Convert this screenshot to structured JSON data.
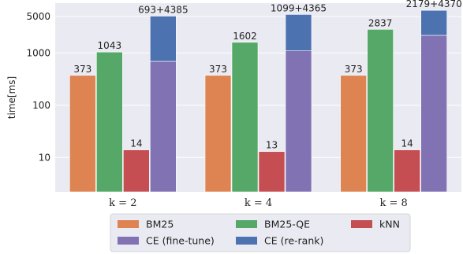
{
  "chart_data": {
    "type": "bar",
    "scale": "log",
    "ylabel": "time[ms]",
    "ylim": [
      2.2,
      9000
    ],
    "yticks": [
      {
        "value": 10,
        "label": "10"
      },
      {
        "value": 100,
        "label": "100"
      },
      {
        "value": 1000,
        "label": "1000"
      },
      {
        "value": 5000,
        "label": "5000"
      }
    ],
    "grid": true,
    "categories": [
      "k = 2",
      "k = 4",
      "k = 8"
    ],
    "series": [
      {
        "name": "BM25",
        "color": "#dd8452",
        "values": [
          373,
          373,
          373
        ],
        "labels": [
          "373",
          "373",
          "373"
        ]
      },
      {
        "name": "BM25-QE",
        "color": "#55a868",
        "values": [
          1043,
          1602,
          2837
        ],
        "labels": [
          "1043",
          "1602",
          "2837"
        ]
      },
      {
        "name": "kNN",
        "color": "#c44e52",
        "values": [
          14,
          13,
          14
        ],
        "labels": [
          "14",
          "13",
          "14"
        ]
      },
      {
        "name": "CE (fine-tune)",
        "color": "#8172b3",
        "values": [
          693,
          1099,
          2179
        ],
        "labels": [
          "",
          "",
          ""
        ]
      },
      {
        "name": "CE (re-rank)",
        "color": "#4c72b0",
        "values": [
          4385,
          4365,
          4370
        ],
        "labels": [
          "",
          "",
          ""
        ],
        "stacked_on": "CE (fine-tune)"
      }
    ],
    "stack_labels": [
      "693+4385",
      "1099+4365",
      "2179+4370"
    ],
    "legend": {
      "position": "bottom",
      "order": [
        "BM25",
        "BM25-QE",
        "kNN",
        "CE (fine-tune)",
        "CE (re-rank)"
      ]
    },
    "background": "#eaeaf2"
  }
}
